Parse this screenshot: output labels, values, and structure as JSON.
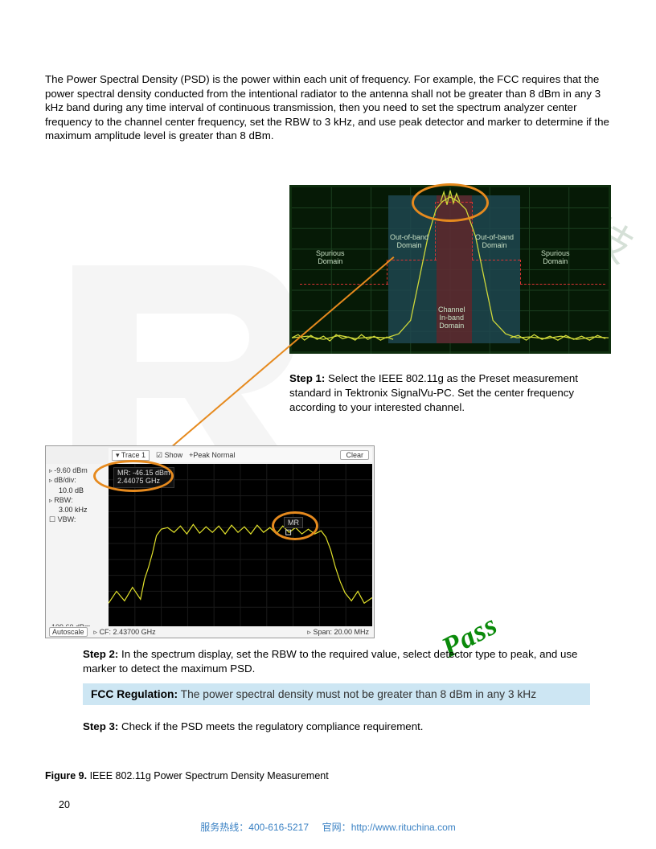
{
  "intro": "The Power Spectral Density (PSD) is the power within each unit of frequency. For example, the FCC requires that the power spectral density conducted from the intentional radiator to the antenna shall not be greater than 8 dBm in any 3 kHz band during any time interval of continuous transmission, then you need to set the spectrum analyzer center frequency to the channel center frequency, set the RBW to 3 kHz, and use peak detector and marker to determine if the maximum amplitude level is greater than 8 dBm.",
  "psd": {
    "bg": "#061a06",
    "grid_color": "#1c4020",
    "oob_fill": "#1e4650",
    "inband_fill": "#5d2c33",
    "mask_color": "#d33",
    "trace_color": "#d0da3a",
    "labels": {
      "spur_left": "Spurious\nDomain",
      "spur_right": "Spurious\nDomain",
      "oob_left": "Out-of-band\nDomain",
      "oob_right": "Out-of-band\nDomain",
      "inband": "Channel\nIn-band\nDomain"
    },
    "zoom_ring_color": "#e68a1e"
  },
  "step1": {
    "bold": "Step 1:",
    "text": " Select the IEEE 802.11g as the Preset measurement standard in Tektronix SignalVu-PC. Set the center frequency according to your interested channel."
  },
  "sa": {
    "topbar": {
      "trace_label": "Trace 1",
      "show_label": "Show",
      "mode_label": "+Peak Normal",
      "clear": "Clear"
    },
    "sidebar": {
      "ref": "-9.60 dBm",
      "dbdiv_label": "dB/div:",
      "dbdiv": "10.0 dB",
      "rbw_label": "RBW:",
      "rbw": "3.00 kHz",
      "vbw_label": "VBW:"
    },
    "marker": {
      "id": "MR",
      "db": "MR: -46.15 dBm",
      "freq": "2.44075 GHz"
    },
    "mrbox": "MR",
    "footer": {
      "bottom_ref": "-109.60 dBm",
      "autoscale": "Autoscale",
      "cf_label": "CF: 2.43700 GHz",
      "span_label": "Span: 20.00 MHz"
    },
    "colors": {
      "plot_bg": "#000000",
      "trace": "#e2e22b",
      "grid": "#222222",
      "text": "#dddddd"
    }
  },
  "pass_label": "Pass",
  "step2": {
    "bold": "Step 2:",
    "text": " In the spectrum display, set the RBW to the required value, select detector type to peak, and use marker to detect the maximum PSD."
  },
  "fcc": {
    "bold": "FCC Regulation:",
    "text": " The power spectral density must not be greater than 8 dBm in any 3 kHz"
  },
  "step3": {
    "bold": "Step 3:",
    "text": " Check if the PSD meets the regulatory compliance requirement."
  },
  "figure": {
    "bold": "Figure 9.",
    "text": " IEEE 802.11g Power Spectrum Density Measurement"
  },
  "page_number": "20",
  "footer": {
    "tel_label": "服务热线：",
    "tel": "400-616-5217",
    "site_label": "官网：",
    "url": "http://www.rituchina.com"
  },
  "watermark_cn": "技"
}
